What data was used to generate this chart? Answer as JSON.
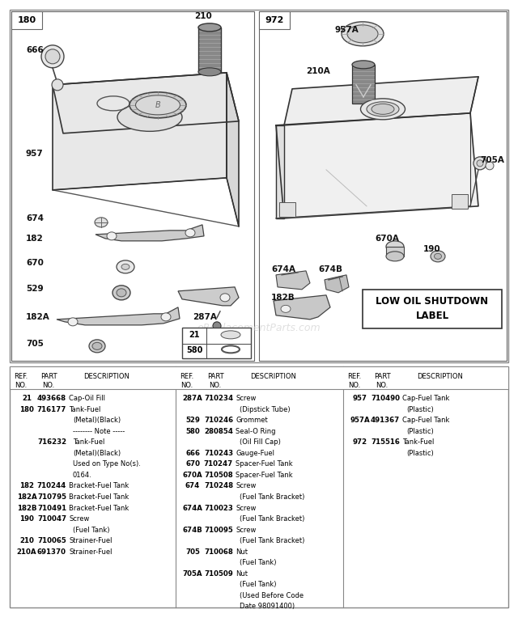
{
  "bg_color": "#ffffff",
  "watermark": "eReplacementParts.com",
  "left_box_label": "180",
  "right_box_label": "972",
  "low_oil_label": "LOW OIL SHUTDOWN\nLABEL",
  "table_col1": {
    "rows": [
      {
        "ref": "21",
        "part": "493668",
        "desc": "Cap-Oil Fill",
        "indent": false
      },
      {
        "ref": "180",
        "part": "716177",
        "desc": "Tank-Fuel",
        "indent": false
      },
      {
        "ref": "",
        "part": "",
        "desc": "(Metal)(Black)",
        "indent": true
      },
      {
        "ref": "",
        "part": "",
        "desc": "-------- Note -----",
        "indent": true
      },
      {
        "ref": "",
        "part": "716232",
        "desc": "Tank-Fuel",
        "indent": true
      },
      {
        "ref": "",
        "part": "",
        "desc": "(Metal)(Black)",
        "indent": true
      },
      {
        "ref": "",
        "part": "",
        "desc": "Used on Type No(s).",
        "indent": true
      },
      {
        "ref": "",
        "part": "",
        "desc": "0164.",
        "indent": true
      },
      {
        "ref": "182",
        "part": "710244",
        "desc": "Bracket-Fuel Tank",
        "indent": false
      },
      {
        "ref": "182A",
        "part": "710795",
        "desc": "Bracket-Fuel Tank",
        "indent": false
      },
      {
        "ref": "182B",
        "part": "710491",
        "desc": "Bracket-Fuel Tank",
        "indent": false
      },
      {
        "ref": "190",
        "part": "710047",
        "desc": "Screw",
        "indent": false
      },
      {
        "ref": "",
        "part": "",
        "desc": "(Fuel Tank)",
        "indent": true
      },
      {
        "ref": "210",
        "part": "710065",
        "desc": "Strainer-Fuel",
        "indent": false
      },
      {
        "ref": "210A",
        "part": "691370",
        "desc": "Strainer-Fuel",
        "indent": false
      }
    ]
  },
  "table_col2": {
    "rows": [
      {
        "ref": "287A",
        "part": "710234",
        "desc": "Screw",
        "indent": false
      },
      {
        "ref": "",
        "part": "",
        "desc": "(Dipstick Tube)",
        "indent": true
      },
      {
        "ref": "529",
        "part": "710246",
        "desc": "Grommet",
        "indent": false
      },
      {
        "ref": "580",
        "part": "280854",
        "desc": "Seal-O Ring",
        "indent": false
      },
      {
        "ref": "",
        "part": "",
        "desc": "(Oil Fill Cap)",
        "indent": true
      },
      {
        "ref": "666",
        "part": "710243",
        "desc": "Gauge-Fuel",
        "indent": false
      },
      {
        "ref": "670",
        "part": "710247",
        "desc": "Spacer-Fuel Tank",
        "indent": false
      },
      {
        "ref": "670A",
        "part": "710508",
        "desc": "Spacer-Fuel Tank",
        "indent": false
      },
      {
        "ref": "674",
        "part": "710248",
        "desc": "Screw",
        "indent": false
      },
      {
        "ref": "",
        "part": "",
        "desc": "(Fuel Tank Bracket)",
        "indent": true
      },
      {
        "ref": "674A",
        "part": "710023",
        "desc": "Screw",
        "indent": false
      },
      {
        "ref": "",
        "part": "",
        "desc": "(Fuel Tank Bracket)",
        "indent": true
      },
      {
        "ref": "674B",
        "part": "710095",
        "desc": "Screw",
        "indent": false
      },
      {
        "ref": "",
        "part": "",
        "desc": "(Fuel Tank Bracket)",
        "indent": true
      },
      {
        "ref": "705",
        "part": "710068",
        "desc": "Nut",
        "indent": false
      },
      {
        "ref": "",
        "part": "",
        "desc": "(Fuel Tank)",
        "indent": true
      },
      {
        "ref": "705A",
        "part": "710509",
        "desc": "Nut",
        "indent": false
      },
      {
        "ref": "",
        "part": "",
        "desc": "(Fuel Tank)",
        "indent": true
      },
      {
        "ref": "",
        "part": "",
        "desc": "(Used Before Code",
        "indent": true
      },
      {
        "ref": "",
        "part": "",
        "desc": "Date 98091400)",
        "indent": true
      }
    ]
  },
  "table_col3": {
    "rows": [
      {
        "ref": "957",
        "part": "710490",
        "desc": "Cap-Fuel Tank",
        "indent": false
      },
      {
        "ref": "",
        "part": "",
        "desc": "(Plastic)",
        "indent": true
      },
      {
        "ref": "957A",
        "part": "491367",
        "desc": "Cap-Fuel Tank",
        "indent": false
      },
      {
        "ref": "",
        "part": "",
        "desc": "(Plastic)",
        "indent": true
      },
      {
        "ref": "972",
        "part": "715516",
        "desc": "Tank-Fuel",
        "indent": false
      },
      {
        "ref": "",
        "part": "",
        "desc": "(Plastic)",
        "indent": true
      }
    ]
  }
}
